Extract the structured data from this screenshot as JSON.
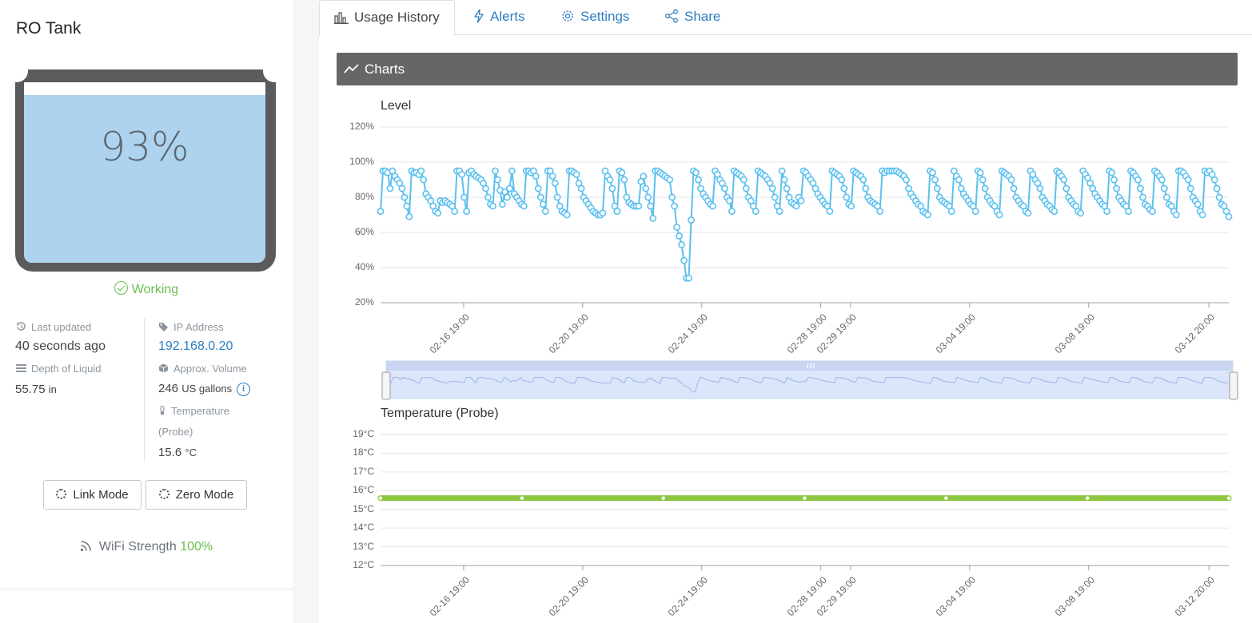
{
  "sidebar": {
    "title": "RO Tank",
    "level_percent": "93%",
    "level_fraction": 0.93,
    "status": "Working",
    "last_updated_label": "Last updated",
    "last_updated_value": "40 seconds ago",
    "ip_label": "IP Address",
    "ip_value": "192.168.0.20",
    "depth_label": "Depth of Liquid",
    "depth_value": "55.75",
    "depth_unit": "in",
    "volume_label": "Approx. Volume",
    "volume_value": "246",
    "volume_unit": "US gallons",
    "temp_label_1": "Temperature",
    "temp_label_2": "(Probe)",
    "temp_value": "15.6",
    "temp_unit": "°C",
    "link_mode_label": "Link Mode",
    "zero_mode_label": "Zero Mode",
    "wifi_label": "WiFi Strength",
    "wifi_value": "100%"
  },
  "tabs": [
    {
      "label": "Usage History",
      "icon": "bar-chart-icon"
    },
    {
      "label": "Alerts",
      "icon": "bolt-icon"
    },
    {
      "label": "Settings",
      "icon": "gear-icon"
    },
    {
      "label": "Share",
      "icon": "share-icon"
    }
  ],
  "panel": {
    "title": "Charts"
  },
  "colors": {
    "level_series": "#5bc0f0",
    "temp_series": "#8dc63f",
    "status_ok": "#6abf4b",
    "link": "#2f7ec0",
    "panel_header": "#666666"
  },
  "chart_data": [
    {
      "type": "line",
      "title": "Level",
      "yticks": [
        "120%",
        "100%",
        "80%",
        "60%",
        "40%",
        "20%"
      ],
      "ylim": [
        20,
        120
      ],
      "xlim": [
        "02-14 00:00",
        "03-13 12:00"
      ],
      "xticks": [
        "02-16 19:00",
        "02-20 19:00",
        "02-24 19:00",
        "02-28 19:00",
        "02-29 19:00",
        "03-04 19:00",
        "03-08 19:00",
        "03-12 20:00"
      ],
      "grid": true,
      "series": [
        {
          "values": [
            72,
            95,
            95,
            94,
            85,
            95,
            92,
            90,
            88,
            85,
            80,
            75,
            69,
            95,
            94,
            94,
            93,
            95,
            90,
            82,
            80,
            78,
            75,
            72,
            71,
            78,
            77,
            78,
            77,
            76,
            75,
            72,
            95,
            95,
            93,
            80,
            72,
            94,
            95,
            93,
            92,
            91,
            90,
            88,
            85,
            80,
            76,
            75,
            95,
            90,
            84,
            76,
            83,
            80,
            85,
            95,
            82,
            80,
            78,
            76,
            75,
            95,
            95,
            94,
            95,
            92,
            85,
            80,
            76,
            72,
            95,
            95,
            92,
            88,
            80,
            75,
            72,
            71,
            70,
            95,
            95,
            94,
            93,
            88,
            85,
            80,
            78,
            76,
            74,
            72,
            71,
            70,
            70,
            71,
            95,
            92,
            90,
            85,
            75,
            72,
            95,
            94,
            90,
            80,
            77,
            76,
            75,
            75,
            75,
            89,
            92,
            85,
            80,
            75,
            68,
            95,
            95,
            94,
            93,
            92,
            91,
            90,
            80,
            75,
            63,
            58,
            53,
            44,
            34,
            34,
            67,
            95,
            94,
            90,
            85,
            82,
            80,
            78,
            76,
            75,
            95,
            93,
            90,
            88,
            85,
            80,
            78,
            72,
            95,
            94,
            93,
            92,
            90,
            85,
            80,
            78,
            75,
            72,
            95,
            94,
            93,
            92,
            90,
            88,
            85,
            80,
            75,
            72,
            95,
            90,
            85,
            80,
            77,
            76,
            75,
            80,
            78,
            95,
            94,
            92,
            90,
            88,
            85,
            82,
            80,
            78,
            76,
            75,
            72,
            95,
            94,
            93,
            92,
            90,
            85,
            80,
            76,
            75,
            95,
            94,
            93,
            92,
            90,
            85,
            80,
            78,
            77,
            76,
            75,
            72,
            95,
            94,
            95,
            95,
            95,
            95,
            95,
            94,
            93,
            92,
            90,
            85,
            82,
            80,
            78,
            76,
            75,
            72,
            71,
            70,
            95,
            94,
            90,
            85,
            80,
            78,
            77,
            76,
            75,
            72,
            95,
            92,
            90,
            85,
            82,
            80,
            78,
            76,
            75,
            72,
            95,
            94,
            90,
            85,
            80,
            78,
            76,
            75,
            72,
            70,
            95,
            94,
            93,
            92,
            90,
            85,
            80,
            78,
            76,
            75,
            72,
            71,
            95,
            93,
            90,
            88,
            85,
            80,
            78,
            76,
            75,
            73,
            72,
            95,
            94,
            92,
            90,
            85,
            80,
            78,
            76,
            75,
            72,
            71,
            95,
            93,
            91,
            88,
            85,
            82,
            80,
            78,
            76,
            75,
            72,
            95,
            94,
            90,
            85,
            80,
            78,
            76,
            75,
            72,
            95,
            94,
            92,
            90,
            85,
            80,
            76,
            75,
            73,
            72,
            95,
            94,
            92,
            90,
            85,
            80,
            76,
            75,
            72,
            70,
            95,
            95,
            94,
            92,
            90,
            85,
            80,
            78,
            76,
            72,
            70,
            95,
            94,
            95,
            93,
            90,
            85,
            80,
            76,
            75,
            72,
            69
          ]
        }
      ]
    },
    {
      "type": "line",
      "title": "Temperature (Probe)",
      "yticks": [
        "19°C",
        "18°C",
        "17°C",
        "16°C",
        "15°C",
        "14°C",
        "13°C",
        "12°C"
      ],
      "ylim": [
        12,
        19
      ],
      "xlim": [
        "02-14 00:00",
        "03-13 12:00"
      ],
      "xticks": [
        "02-16 19:00",
        "02-20 19:00",
        "02-24 19:00",
        "02-28 19:00",
        "02-29 19:00",
        "03-04 19:00",
        "03-08 19:00",
        "03-12 20:00"
      ],
      "grid": true,
      "series": [
        {
          "values": [
            15.6,
            15.6,
            15.6,
            15.6,
            15.6,
            15.6,
            15.6
          ]
        }
      ]
    }
  ]
}
